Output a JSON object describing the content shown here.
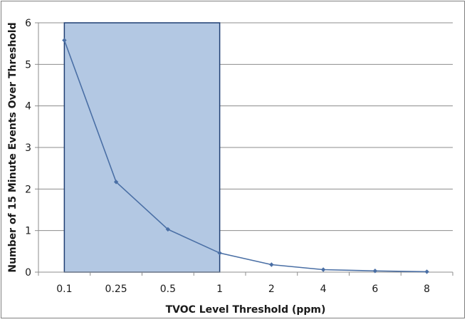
{
  "chart_data": {
    "type": "line",
    "categories": [
      "0.1",
      "0.25",
      "0.5",
      "1",
      "2",
      "4",
      "6",
      "8"
    ],
    "series": [
      {
        "values": [
          5.58,
          2.17,
          1.03,
          0.46,
          0.18,
          0.06,
          0.03,
          0.01
        ],
        "color": "#4a6fa5"
      }
    ],
    "xlabel": "TVOC Level Threshold (ppm)",
    "ylabel": "Number of 15 Minute Events Over Threshold",
    "ylim": [
      0,
      6
    ],
    "yticks": [
      "0",
      "1",
      "2",
      "3",
      "4",
      "5",
      "6"
    ],
    "grid": true,
    "highlight_region": {
      "x_from_category_boundary": 0.5,
      "x_to_category_boundary": 3.5,
      "y_from": 0,
      "y_to": 6,
      "fill": "#b3c8e3",
      "stroke": "#1f3f73"
    }
  }
}
